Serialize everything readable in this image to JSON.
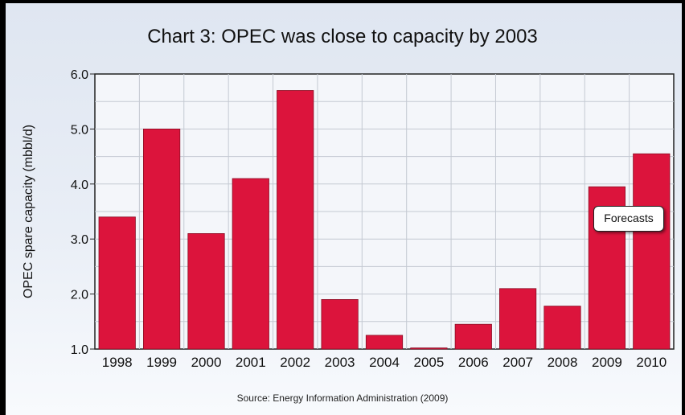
{
  "chart_data": {
    "type": "bar",
    "title": "Chart 3: OPEC was close to capacity by 2003",
    "xlabel": "",
    "ylabel": "OPEC spare capacity (mbbl/d)",
    "ylim": [
      1.0,
      6.0
    ],
    "yticks": [
      "1.0",
      "2.0",
      "3.0",
      "4.0",
      "5.0",
      "6.0"
    ],
    "categories": [
      "1998",
      "1999",
      "2000",
      "2001",
      "2002",
      "2003",
      "2004",
      "2005",
      "2006",
      "2007",
      "2008",
      "2009",
      "2010"
    ],
    "values": [
      3.4,
      5.0,
      3.1,
      4.1,
      5.7,
      1.9,
      1.25,
      1.02,
      1.45,
      2.1,
      1.78,
      3.95,
      4.55
    ],
    "grid": true,
    "bar_color": "#dc143c",
    "annotation": "Forecasts",
    "source": "Source: Energy Information Administration (2009)"
  }
}
